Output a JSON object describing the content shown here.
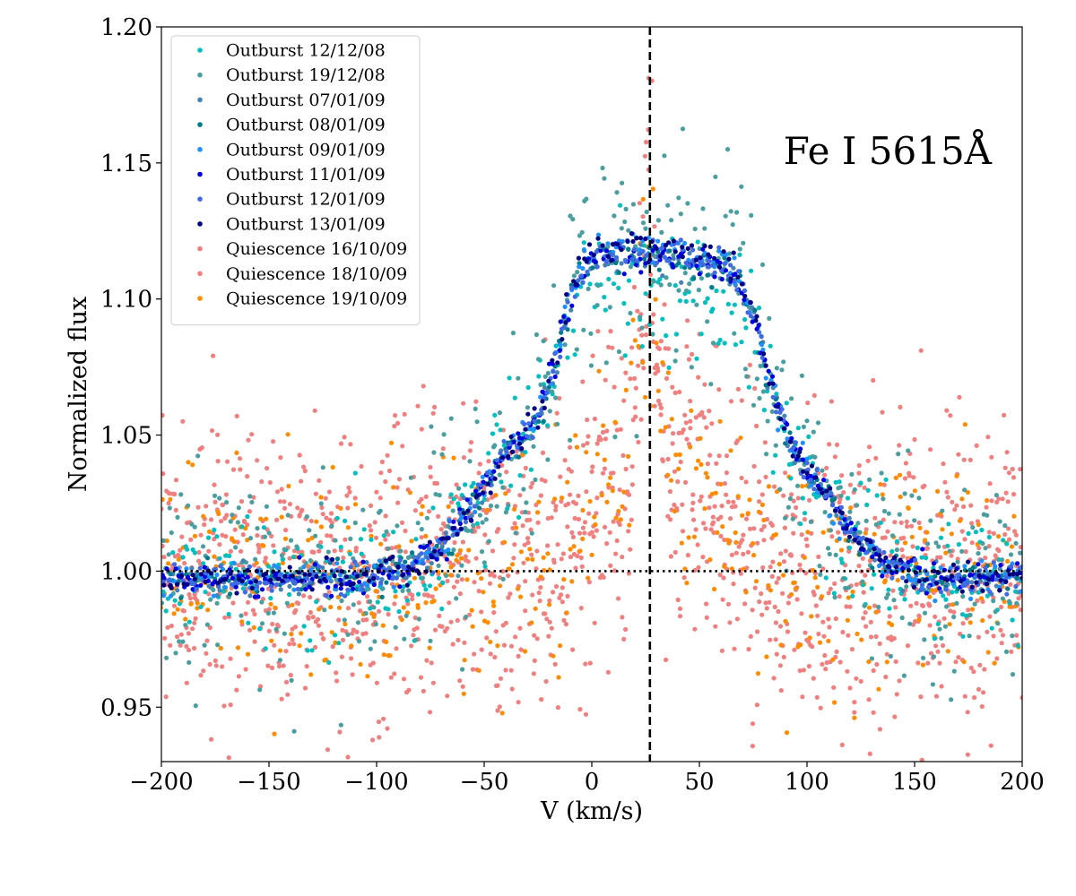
{
  "chart_data": {
    "type": "scatter",
    "title": "",
    "xlabel": "V (km/s)",
    "ylabel": "Normalized flux",
    "xlim": [
      -200,
      200
    ],
    "ylim": [
      0.93,
      1.2
    ],
    "xticks": [
      -200,
      -150,
      -100,
      -50,
      0,
      50,
      100,
      150,
      200
    ],
    "xtick_labels": [
      "−200",
      "−150",
      "−100",
      "−50",
      "0",
      "50",
      "100",
      "150",
      "200"
    ],
    "yticks": [
      0.95,
      1.0,
      1.05,
      1.1,
      1.15,
      1.2
    ],
    "ytick_labels": [
      "0.95",
      "1.00",
      "1.05",
      "1.10",
      "1.15",
      "1.20"
    ],
    "annotation": "Fe I 5615Å",
    "legend_position": "upper-left",
    "reference_lines": {
      "vertical_dashed_x": 27,
      "horizontal_dotted_y": 1.0
    },
    "profiles": {
      "outburst": {
        "baseline": 0.997,
        "wing_centers": [
          -50,
          105
        ],
        "wing_slope": 1.9,
        "wing_left_amplitude": 0.03,
        "wing_right_amplitude": 0.025,
        "peak_range": [
          -15,
          80
        ],
        "peak_height": 1.115,
        "peak_edge_softness": 5
      },
      "quiescence": {
        "baseline": 0.999,
        "center": 26,
        "peak_height": 1.11,
        "core_width": 4.2,
        "broad_amplitude": 0.04,
        "broad_width": 26
      }
    },
    "series": [
      {
        "name": "Outburst 12/12/08",
        "label": "Outburst 12/12/08",
        "color": "#00bfbf",
        "profile": "outburst",
        "x_step": 1.1,
        "scatter": 0.012,
        "peak_offset": -0.012
      },
      {
        "name": "Outburst 19/12/08",
        "label": "Outburst 19/12/08",
        "color": "#4a9ea0",
        "profile": "outburst",
        "x_step": 0.8,
        "scatter": 0.02,
        "peak_offset": 0.0
      },
      {
        "name": "Outburst 07/01/09",
        "label": "Outburst 07/01/09",
        "color": "#4682b4",
        "profile": "outburst",
        "x_step": 1.7,
        "scatter": 0.003,
        "peak_offset": 0.0
      },
      {
        "name": "Outburst 08/01/09",
        "label": "Outburst 08/01/09",
        "color": "#007b8a",
        "profile": "outburst",
        "x_step": 1.9,
        "scatter": 0.003,
        "peak_offset": 0.0
      },
      {
        "name": "Outburst 09/01/09",
        "label": "Outburst 09/01/09",
        "color": "#1e90ff",
        "profile": "outburst",
        "x_step": 1.6,
        "scatter": 0.003,
        "peak_offset": 0.004
      },
      {
        "name": "Outburst 11/01/09",
        "label": "Outburst 11/01/09",
        "color": "#0000e0",
        "profile": "outburst",
        "x_step": 1.5,
        "scatter": 0.003,
        "peak_offset": 0.0
      },
      {
        "name": "Outburst 12/01/09",
        "label": "Outburst 12/01/09",
        "color": "#4169e1",
        "profile": "outburst",
        "x_step": 1.4,
        "scatter": 0.003,
        "peak_offset": 0.002
      },
      {
        "name": "Outburst 13/01/09",
        "label": "Outburst 13/01/09",
        "color": "#000080",
        "profile": "outburst",
        "x_step": 1.8,
        "scatter": 0.003,
        "peak_offset": 0.005
      },
      {
        "name": "Quiescence 16/10/09",
        "label": "Quiescence 16/10/09",
        "color": "#f08080",
        "profile": "quiescence",
        "x_step": 0.5,
        "scatter": 0.028,
        "peak_offset": 0.0
      },
      {
        "name": "Quiescence 18/10/09",
        "label": "Quiescence 18/10/09",
        "color": "#f08080",
        "profile": "quiescence",
        "x_step": 0.6,
        "scatter": 0.026,
        "peak_offset": 0.0
      },
      {
        "name": "Quiescence 19/10/09",
        "label": "Quiescence 19/10/09",
        "color": "#ff8c00",
        "profile": "quiescence",
        "x_step": 0.9,
        "scatter": 0.02,
        "peak_offset": 0.0
      }
    ]
  }
}
